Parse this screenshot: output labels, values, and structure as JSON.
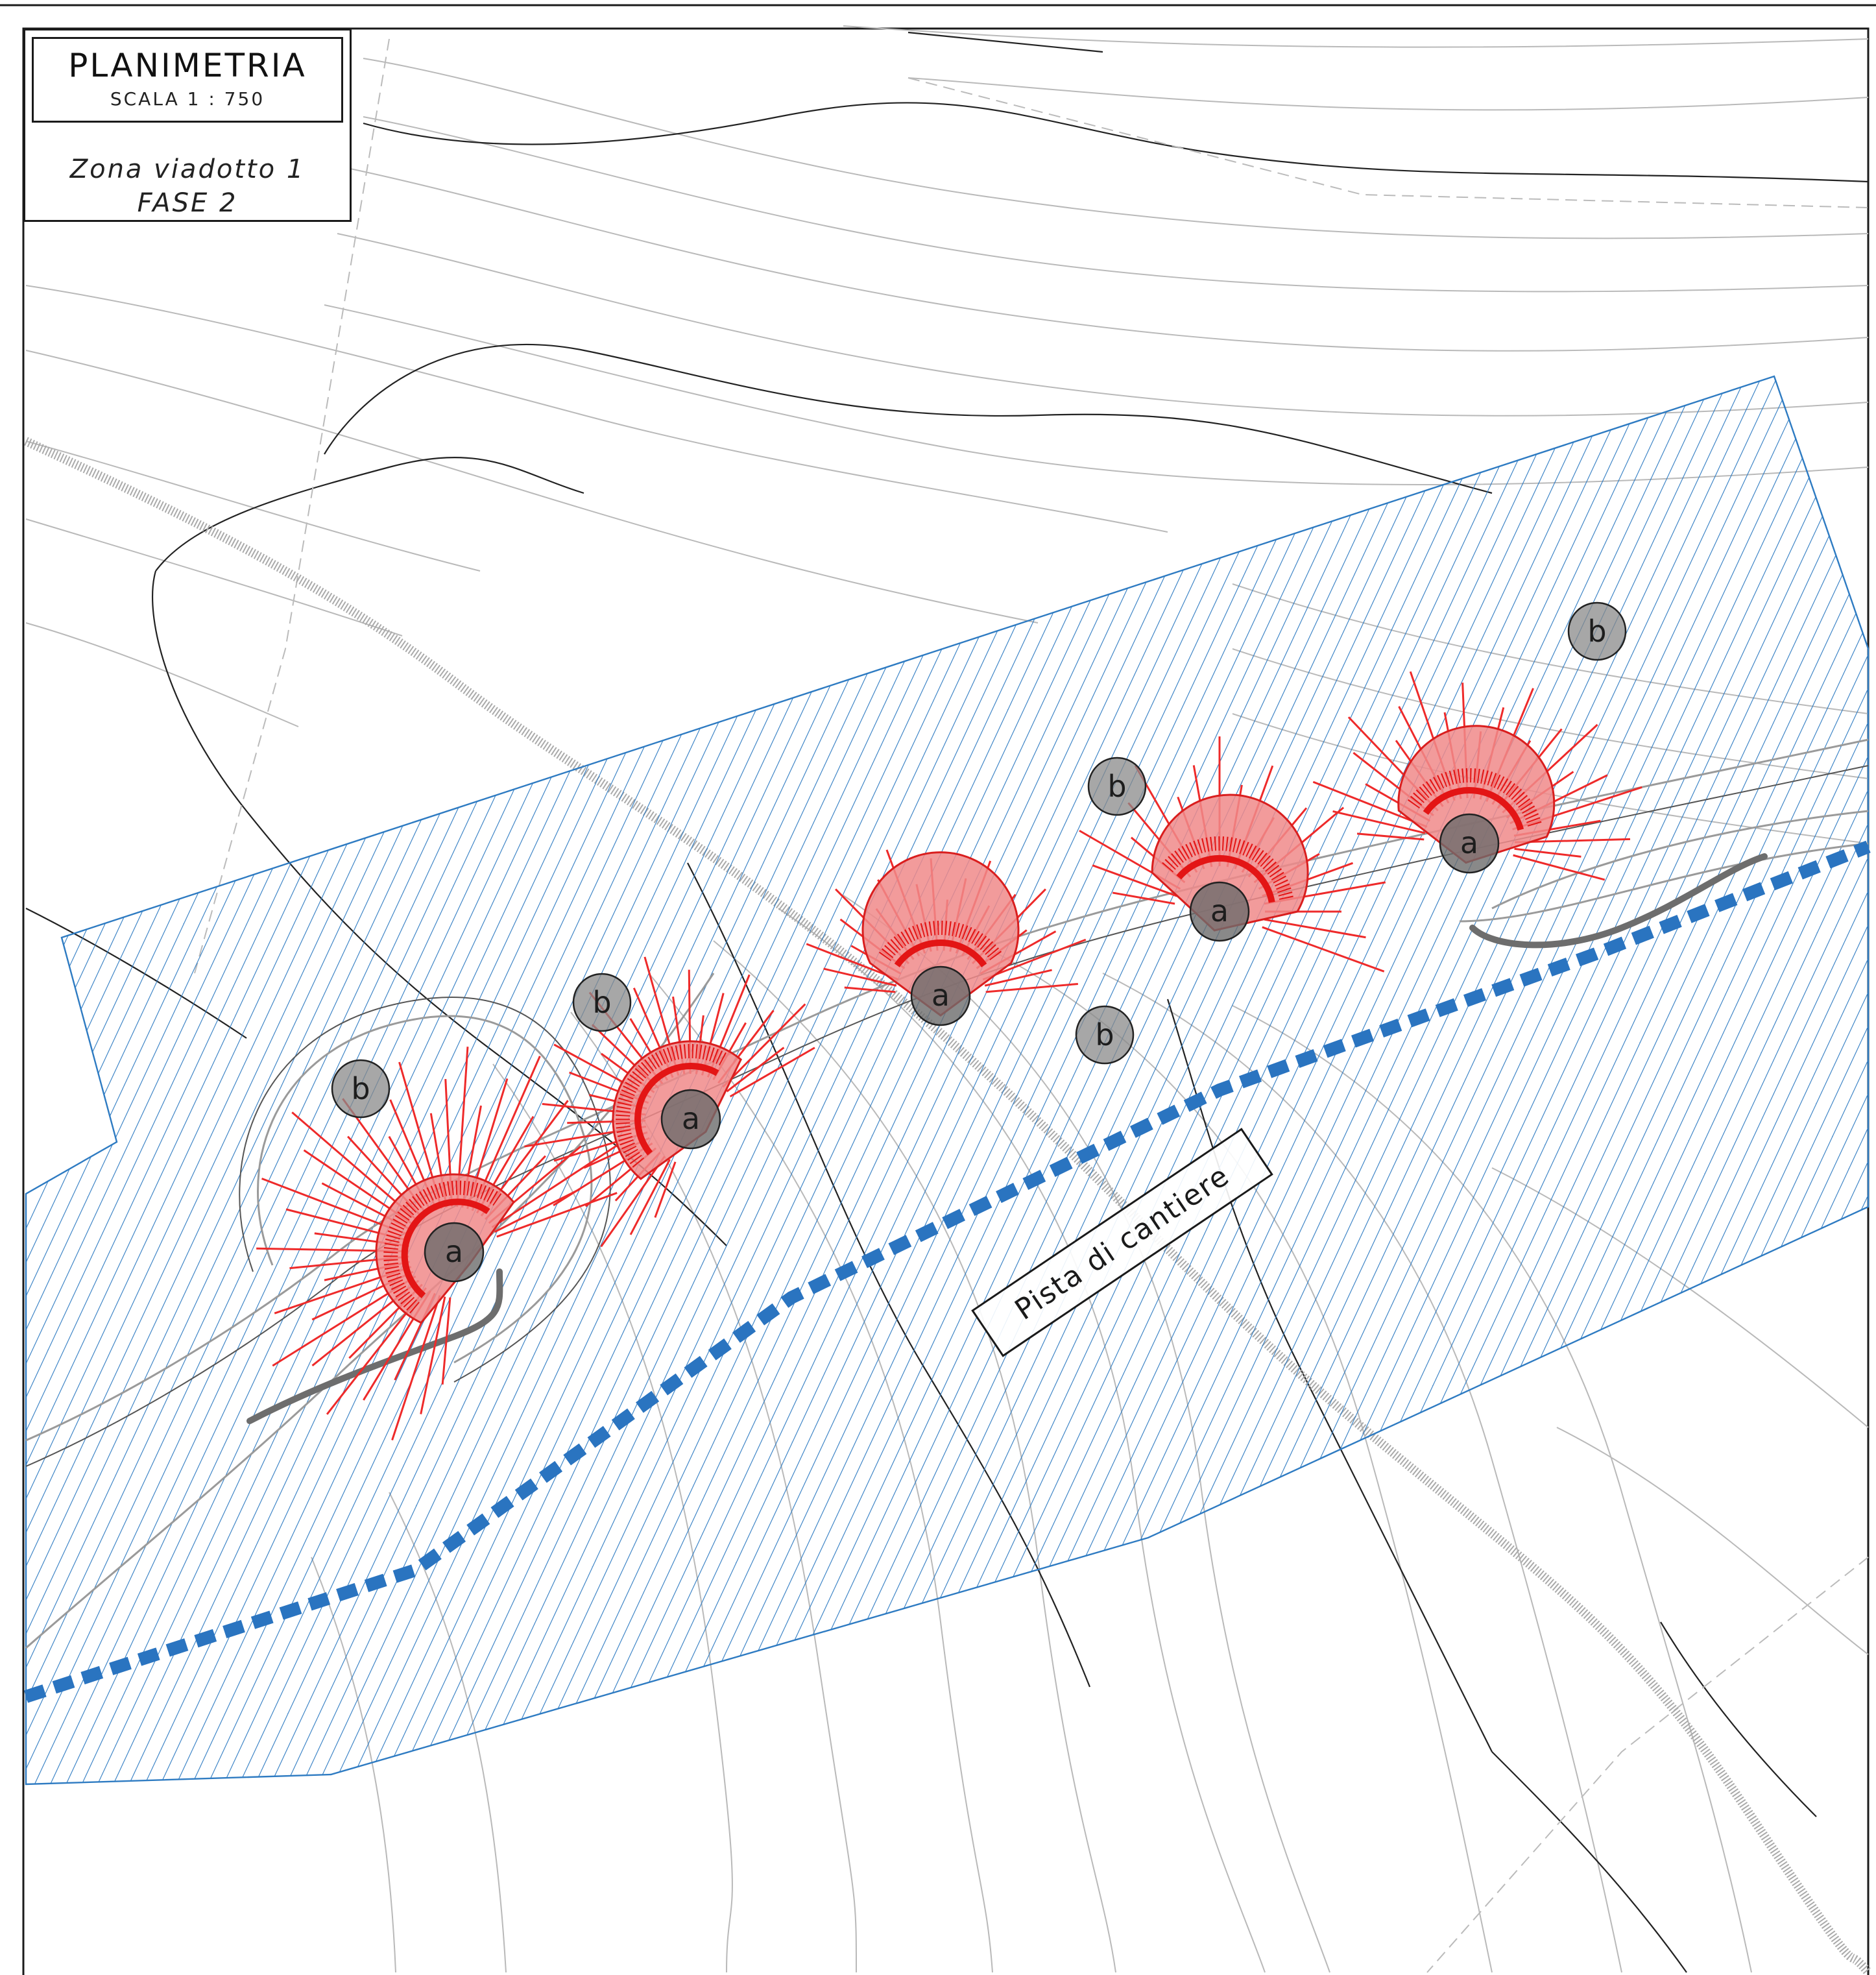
{
  "title_block": {
    "title": "PLANIMETRIA",
    "scale": "SCALA 1 : 750",
    "zone": "Zona viadotto 1",
    "phase": "FASE 2"
  },
  "labels": {
    "pista": "Pista di cantiere"
  },
  "piers": [
    {
      "label": "a",
      "lines": 38
    },
    {
      "label": "a",
      "lines": 30
    },
    {
      "label": "a",
      "lines": 22
    },
    {
      "label": "a",
      "lines": 20
    },
    {
      "label": "a",
      "lines": 24
    }
  ],
  "markers": [
    "b",
    "b",
    "b",
    "b",
    "b"
  ],
  "colors": {
    "pier_red": "#e31515",
    "zone_blue": "#2e7bc2",
    "pista_blue": "#2a74c0",
    "disc_grey": "#6b6b6b"
  }
}
